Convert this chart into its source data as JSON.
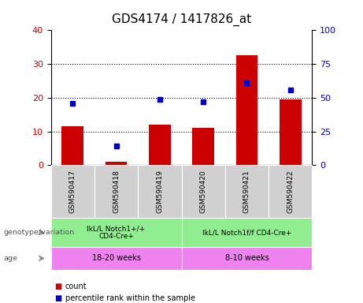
{
  "title": "GDS4174 / 1417826_at",
  "samples": [
    "GSM590417",
    "GSM590418",
    "GSM590419",
    "GSM590420",
    "GSM590421",
    "GSM590422"
  ],
  "counts": [
    11.5,
    1.0,
    12.0,
    11.0,
    32.5,
    19.5
  ],
  "percentile_ranks": [
    46.0,
    14.5,
    48.5,
    47.0,
    61.0,
    56.0
  ],
  "count_color": "#cc0000",
  "percentile_color": "#0000cc",
  "ylim_left": [
    0,
    40
  ],
  "ylim_right": [
    0,
    100
  ],
  "yticks_left": [
    0,
    10,
    20,
    30,
    40
  ],
  "yticks_right": [
    0,
    25,
    50,
    75,
    100
  ],
  "genotype_labels": [
    "IkL/L Notch1+/+\nCD4-Cre+",
    "IkL/L Notch1f/f CD4-Cre+"
  ],
  "genotype_color": "#90ee90",
  "age_labels": [
    "18-20 weeks",
    "8-10 weeks"
  ],
  "age_color": "#ee82ee",
  "row_label_genotype": "genotype/variation",
  "row_label_age": "age",
  "legend_count": "count",
  "legend_percentile": "percentile rank within the sample",
  "bar_width": 0.5,
  "sample_bg_color": "#d0d0d0",
  "title_fontsize": 11,
  "tick_fontsize": 8,
  "label_fontsize": 7.5
}
